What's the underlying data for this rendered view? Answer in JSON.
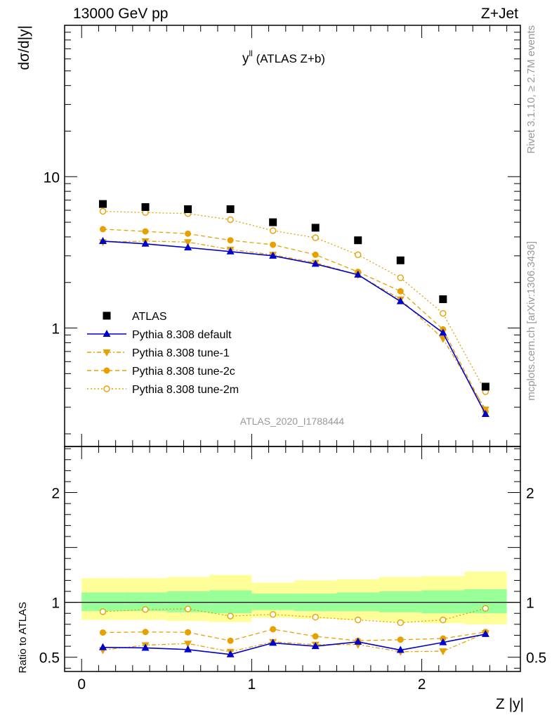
{
  "header": {
    "left": "13000 GeV pp",
    "right": "Z+Jet"
  },
  "plot_title": {
    "main": "y",
    "superscript": "ll",
    "rest": " (ATLAS Z+b)"
  },
  "analysis_id": "ATLAS_2020_I1788444",
  "side_text": {
    "rivet": "Rivet 3.1.10, ≥ 2.7M events",
    "mcplots": "mcplots.cern.ch [arXiv:1306.3436]"
  },
  "colors": {
    "atlas": "#000000",
    "default": "#0000cc",
    "tune": "#e6a000",
    "band_outer": "#ffff99",
    "band_inner": "#99ff99"
  },
  "chart_data": [
    {
      "type": "scatter",
      "panel": "main",
      "ylabel": "dσ/d|y|",
      "xlabel": "Z |y|",
      "y_scale": "log",
      "xlim": [
        -0.1,
        2.58
      ],
      "ylim": [
        0.165,
        100
      ],
      "y_tick_labels": [
        "1",
        "10"
      ],
      "x": [
        0.125,
        0.375,
        0.625,
        0.875,
        1.125,
        1.375,
        1.625,
        1.875,
        2.125,
        2.375
      ],
      "series": [
        {
          "name": "ATLAS",
          "style": "square",
          "values": [
            6.6,
            6.3,
            6.1,
            6.1,
            5.0,
            4.6,
            3.8,
            2.8,
            1.55,
            0.41
          ]
        },
        {
          "name": "Pythia 8.308 default",
          "style": "tri-up-solid",
          "values": [
            3.75,
            3.6,
            3.4,
            3.2,
            3.0,
            2.65,
            2.25,
            1.5,
            0.93,
            0.27
          ]
        },
        {
          "name": "Pythia 8.308 tune-1",
          "style": "tri-down-dashdot",
          "values": [
            3.7,
            3.75,
            3.7,
            3.3,
            3.05,
            2.7,
            2.25,
            1.55,
            0.85,
            0.29
          ]
        },
        {
          "name": "Pythia 8.308 tune-2c",
          "style": "circle-dashed",
          "values": [
            4.5,
            4.35,
            4.2,
            3.8,
            3.55,
            3.05,
            2.35,
            1.75,
            0.98,
            0.28
          ]
        },
        {
          "name": "Pythia 8.308 tune-2m",
          "style": "open-circle-dotted",
          "values": [
            5.9,
            5.8,
            5.7,
            5.2,
            4.4,
            3.95,
            3.05,
            2.15,
            1.25,
            0.38
          ]
        }
      ]
    },
    {
      "type": "line",
      "panel": "ratio",
      "ylabel": "Ratio to ATLAS",
      "xlabel": "Z |y|",
      "xlim": [
        -0.1,
        2.58
      ],
      "ylim": [
        0.37,
        2.42
      ],
      "x_tick_labels": [
        "0",
        "1",
        "2"
      ],
      "y_tick_labels": [
        "0.5",
        "1",
        "2"
      ],
      "x": [
        0.125,
        0.375,
        0.625,
        0.875,
        1.125,
        1.375,
        1.625,
        1.875,
        2.125,
        2.375
      ],
      "band_edges": [
        0.0,
        0.25,
        0.5,
        0.75,
        1.0,
        1.25,
        1.5,
        1.75,
        2.0,
        2.25,
        2.5
      ],
      "band_outer": [
        [
          0.84,
          1.22
        ],
        [
          0.84,
          1.22
        ],
        [
          0.83,
          1.23
        ],
        [
          0.82,
          1.25
        ],
        [
          0.86,
          1.18
        ],
        [
          0.85,
          1.2
        ],
        [
          0.84,
          1.21
        ],
        [
          0.82,
          1.23
        ],
        [
          0.81,
          1.24
        ],
        [
          0.8,
          1.28
        ]
      ],
      "band_inner": [
        [
          0.92,
          1.09
        ],
        [
          0.92,
          1.09
        ],
        [
          0.91,
          1.1
        ],
        [
          0.9,
          1.11
        ],
        [
          0.93,
          1.08
        ],
        [
          0.92,
          1.08
        ],
        [
          0.92,
          1.09
        ],
        [
          0.91,
          1.1
        ],
        [
          0.9,
          1.11
        ],
        [
          0.9,
          1.12
        ]
      ],
      "series": [
        {
          "name": "Pythia 8.308 default",
          "style": "tri-up-solid",
          "values": [
            0.59,
            0.585,
            0.57,
            0.525,
            0.63,
            0.6,
            0.64,
            0.565,
            0.635,
            0.71
          ]
        },
        {
          "name": "Pythia 8.308 tune-1",
          "style": "tri-down-dashdot",
          "values": [
            0.565,
            0.61,
            0.625,
            0.55,
            0.64,
            0.615,
            0.615,
            0.55,
            0.555,
            0.72
          ]
        },
        {
          "name": "Pythia 8.308 tune-2c",
          "style": "circle-dashed",
          "values": [
            0.725,
            0.73,
            0.727,
            0.65,
            0.755,
            0.69,
            0.65,
            0.66,
            0.67,
            0.73
          ]
        },
        {
          "name": "Pythia 8.308 tune-2m",
          "style": "open-circle-dotted",
          "values": [
            0.915,
            0.935,
            0.94,
            0.875,
            0.89,
            0.865,
            0.84,
            0.815,
            0.84,
            0.945
          ]
        }
      ]
    }
  ]
}
